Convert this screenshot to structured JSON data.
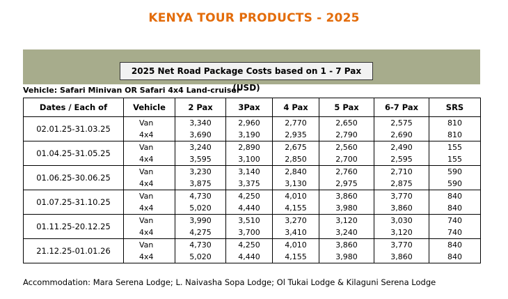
{
  "title": "KENYA TOUR PRODUCTS - 2025",
  "subtitle": "2025 Net Road Package Costs based on 1 - 7 Pax (USD)",
  "vehicle_note": "Vehicle:  Safari Minivan OR Safari 4x4 Land-cruiser",
  "headers": [
    "Dates / Each of",
    "Vehicle",
    "2 Pax",
    "3Pax",
    "4 Pax",
    "5 Pax",
    "6-7 Pax",
    "SRS"
  ],
  "rows": [
    {
      "dates": "02.01.25-31.03.25",
      "van": [
        "Van",
        "3,340",
        "2,960",
        "2,770",
        "2,650",
        "2,575",
        "810"
      ],
      "x4": [
        "4x4",
        "3,690",
        "3,190",
        "2,935",
        "2,790",
        "2,690",
        "810"
      ]
    },
    {
      "dates": "01.04.25-31.05.25",
      "van": [
        "Van",
        "3,240",
        "2,890",
        "2,675",
        "2,560",
        "2,490",
        "155"
      ],
      "x4": [
        "4x4",
        "3,595",
        "3,100",
        "2,850",
        "2,700",
        "2,595",
        "155"
      ]
    },
    {
      "dates": "01.06.25-30.06.25",
      "van": [
        "Van",
        "3,230",
        "3,140",
        "2,840",
        "2,760",
        "2,710",
        "590"
      ],
      "x4": [
        "4x4",
        "3,875",
        "3,375",
        "3,130",
        "2,975",
        "2,875",
        "590"
      ]
    },
    {
      "dates": "01.07.25-31.10.25",
      "van": [
        "Van",
        "4,730",
        "4,250",
        "4,010",
        "3,860",
        "3,770",
        "840"
      ],
      "x4": [
        "4x4",
        "5,020",
        "4,440",
        "4,155",
        "3,980",
        "3,860",
        "840"
      ]
    },
    {
      "dates": "01.11.25-20.12.25",
      "van": [
        "Van",
        "3,990",
        "3,510",
        "3,270",
        "3,120",
        "3,030",
        "740"
      ],
      "x4": [
        "4x4",
        "4,275",
        "3,700",
        "3,410",
        "3,240",
        "3,120",
        "740"
      ]
    },
    {
      "dates": "21.12.25-01.01.26",
      "van": [
        "Van",
        "4,730",
        "4,250",
        "4,010",
        "3,860",
        "3,770",
        "840"
      ],
      "x4": [
        "4x4",
        "5,020",
        "4,440",
        "4,155",
        "3,980",
        "3,860",
        "840"
      ]
    }
  ],
  "footer": "Accommodation: Mara Serena Lodge; L. Naivasha Sopa Lodge; Ol Tukai Lodge & Kilaguni Serena Lodge",
  "colors": {
    "title": "#e36c0a",
    "banner": "#a7ac8c",
    "subtitle_box": "#f2f2f2"
  }
}
